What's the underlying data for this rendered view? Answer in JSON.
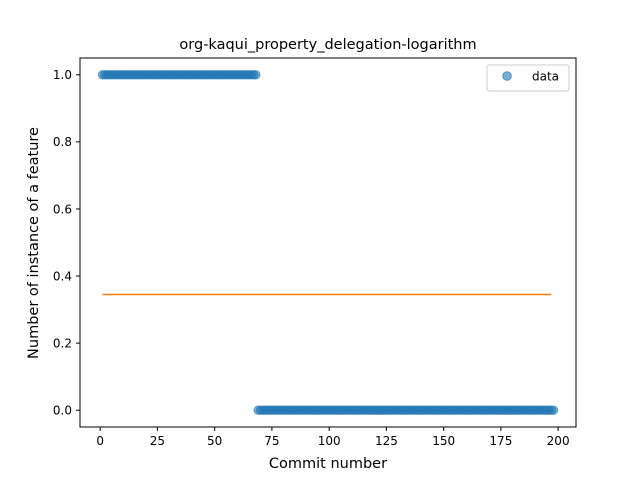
{
  "chart_data": {
    "type": "scatter",
    "title": "org-kaqui_property_delegation-logarithm",
    "xlabel": "Commit number",
    "ylabel": "Number of instance of a feature",
    "xlim": [
      -8.8,
      207.8
    ],
    "ylim": [
      -0.05,
      1.05
    ],
    "xticks": [
      0,
      25,
      50,
      75,
      100,
      125,
      150,
      175,
      200
    ],
    "yticks": [
      0.0,
      0.2,
      0.4,
      0.6,
      0.8,
      1.0
    ],
    "ytick_labels": [
      "0.0",
      "0.2",
      "0.4",
      "0.6",
      "0.8",
      "1.0"
    ],
    "grid": false,
    "legend": {
      "position": "top-right",
      "entries": [
        "data"
      ]
    },
    "series": [
      {
        "name": "data",
        "kind": "scatter",
        "color": "#1f77b4",
        "segments": [
          {
            "x_start": 1,
            "x_end": 68,
            "y": 1.0
          },
          {
            "x_start": 69,
            "x_end": 198,
            "y": 0.0
          }
        ]
      },
      {
        "kind": "line",
        "color": "#ff7f0e",
        "x": [
          1,
          197
        ],
        "y": [
          0.345,
          0.345
        ]
      }
    ]
  }
}
